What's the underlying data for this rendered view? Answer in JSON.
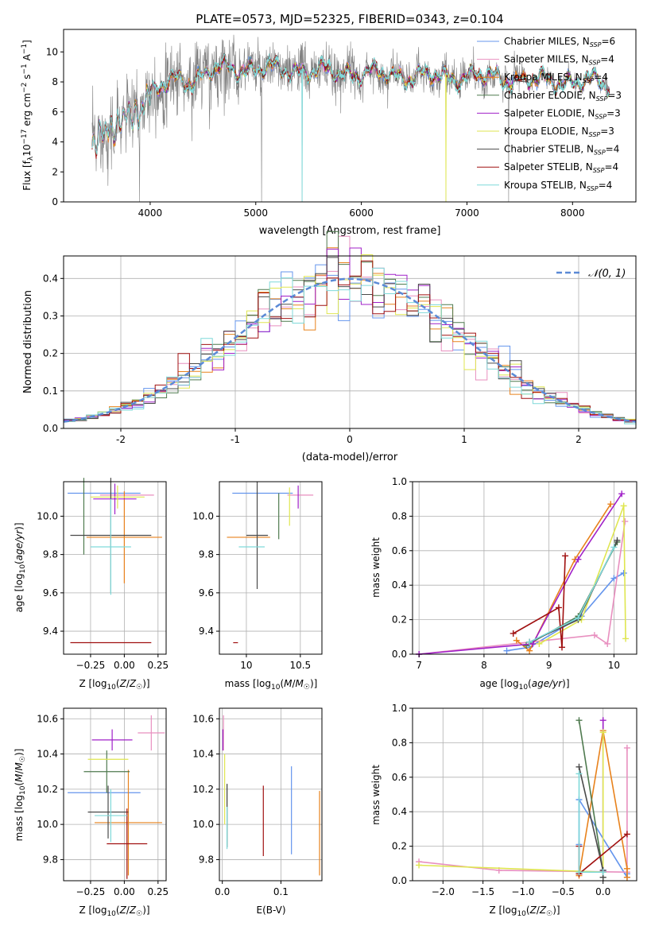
{
  "colors": {
    "palette": [
      "#6495ed",
      "#ee82ee",
      "#ff8c00",
      "#2e8b57",
      "#9400d3",
      "#cdda22",
      "#3a3a3a",
      "#b22222",
      "#72dcd8"
    ],
    "chabrier_miles": "#6495ed",
    "salpeter_miles": "#e88fbf",
    "kroupa_miles": "#e8821c",
    "chabrier_elodie": "#4f7a4f",
    "salpeter_elodie": "#a020c8",
    "kroupa_elodie": "#dfe650",
    "chabrier_stelib": "#4a4a4a",
    "salpeter_stelib": "#a01010",
    "kroupa_stelib": "#7fd9d9",
    "spectrum_gray": "#808080",
    "normal_curve": "#5b8ad6"
  },
  "chart_data": [
    {
      "id": "spectrum",
      "type": "line",
      "title": "PLATE=0573, MJD=52325, FIBERID=0343, z=0.104",
      "xlabel": "wavelength [Angstrom, rest frame]",
      "ylabel": "Flux [f_λ10^-17 erg cm^-2 s^-1 A^-1]",
      "xlim": [
        3180,
        8600
      ],
      "ylim": [
        0,
        11.5
      ],
      "xticks": [
        4000,
        5000,
        6000,
        7000,
        8000
      ],
      "yticks": [
        0,
        2,
        4,
        6,
        8,
        10
      ],
      "grid": false,
      "legend": "top-right",
      "legend_entries": [
        "Chabrier MILES, N_SSP=6",
        "Salpeter MILES, N_SSP=4",
        "Kroupa MILES, N_SSP=4",
        "Chabrier ELODIE, N_SSP=3",
        "Salpeter ELODIE, N_SSP=3",
        "Kroupa ELODIE, N_SSP=3",
        "Chabrier STELIB, N_SSP=4",
        "Salpeter STELIB, N_SSP=4",
        "Kroupa STELIB, N_SSP=4"
      ],
      "continuum": {
        "x": [
          3450,
          3550,
          3700,
          3800,
          3900,
          4000,
          4100,
          4200,
          4300,
          4400,
          4600,
          4800,
          5000,
          5200,
          5400,
          5600,
          5800,
          6000,
          6200,
          6400,
          6600,
          6800,
          7000,
          7200,
          7400,
          7600,
          7800,
          8000,
          8200,
          8350
        ],
        "y": [
          4.0,
          4.3,
          5.2,
          5.7,
          6.4,
          7.2,
          7.6,
          8.0,
          8.2,
          8.1,
          8.8,
          8.9,
          8.9,
          8.8,
          8.8,
          8.7,
          8.6,
          8.6,
          8.5,
          8.4,
          8.4,
          8.3,
          8.4,
          8.3,
          8.2,
          8.1,
          8.1,
          8.0,
          8.0,
          7.9
        ]
      }
    },
    {
      "id": "residuals",
      "type": "histogram",
      "xlabel": "(data-model)/error",
      "ylabel": "Normed distribution",
      "xlim": [
        -2.5,
        2.5
      ],
      "ylim": [
        0,
        0.46
      ],
      "xticks": [
        -2,
        -1,
        0,
        1,
        2
      ],
      "yticks": [
        0.0,
        0.1,
        0.2,
        0.3,
        0.4
      ],
      "grid": true,
      "legend": "top-right",
      "legend_label": "N(0,1)",
      "bin_width": 0.1,
      "bin_start": -2.5
    },
    {
      "id": "age_vs_Z",
      "type": "scatter",
      "xlabel": "Z [log10(Z/Z☉)]",
      "ylabel": "age [log10(age/yr)]",
      "xlim": [
        -0.45,
        0.31
      ],
      "ylim": [
        9.28,
        10.18
      ],
      "xticks": [
        -0.25,
        0.0,
        0.25
      ],
      "xticklabels": [
        "−0.25",
        "0.00",
        "0.25"
      ],
      "yticks": [
        9.4,
        9.6,
        9.8,
        10.0
      ],
      "grid": true,
      "points": [
        {
          "x": -0.15,
          "xerr": 0.27,
          "y": 10.12,
          "yerr": 0.0
        },
        {
          "x": 0.02,
          "xerr": 0.2,
          "y": 10.11,
          "yerr": 0.0
        },
        {
          "x": 0.0,
          "xerr": 0.28,
          "y": 9.89,
          "yerr": 0.24
        },
        {
          "x": -0.3,
          "xerr": 0.0,
          "y": 10.0,
          "yerr": 0.2
        },
        {
          "x": -0.07,
          "xerr": 0.16,
          "y": 10.09,
          "yerr": 0.08
        },
        {
          "x": -0.05,
          "xerr": 0.2,
          "y": 10.1,
          "yerr": 0.06
        },
        {
          "x": -0.1,
          "xerr": 0.3,
          "y": 9.9,
          "yerr": 0.3
        },
        {
          "x": -0.1,
          "xerr": 0.3,
          "y": 9.34,
          "yerr": 0.0
        },
        {
          "x": -0.1,
          "xerr": 0.15,
          "y": 9.84,
          "yerr": 0.25
        }
      ]
    },
    {
      "id": "age_vs_mass",
      "type": "scatter",
      "xlabel": "mass [log10(M/M☉)]",
      "ylabel": "",
      "xlim": [
        9.75,
        10.7
      ],
      "ylim": [
        9.28,
        10.18
      ],
      "xticks": [
        10.0,
        10.5
      ],
      "yticks": [
        9.4,
        9.6,
        9.8,
        10.0
      ],
      "grid": true,
      "points": [
        {
          "x": 10.15,
          "xerr": 0.28,
          "y": 10.12,
          "yerr": 0.0
        },
        {
          "x": 10.5,
          "xerr": 0.12,
          "y": 10.11,
          "yerr": 0.0
        },
        {
          "x": 10.02,
          "xerr": 0.2,
          "y": 9.89,
          "yerr": 0.0
        },
        {
          "x": 10.3,
          "xerr": 0.0,
          "y": 10.0,
          "yerr": 0.12
        },
        {
          "x": 10.48,
          "xerr": 0.0,
          "y": 10.1,
          "yerr": 0.06
        },
        {
          "x": 10.4,
          "xerr": 0.0,
          "y": 10.05,
          "yerr": 0.1
        },
        {
          "x": 10.1,
          "xerr": 0.1,
          "y": 9.9,
          "yerr": 0.28
        },
        {
          "x": 9.9,
          "xerr": 0.0,
          "y": 9.34,
          "yerr": 0.0
        },
        {
          "x": 10.05,
          "xerr": 0.12,
          "y": 9.84,
          "yerr": 0.0
        }
      ]
    },
    {
      "id": "mw_vs_age",
      "type": "line",
      "xlabel": "age [log10(age/yr)]",
      "ylabel": "mass weight",
      "xlim": [
        6.9,
        10.35
      ],
      "ylim": [
        0,
        1.0
      ],
      "xticks": [
        7,
        8,
        9,
        10
      ],
      "yticks": [
        0.0,
        0.2,
        0.4,
        0.6,
        0.8,
        1.0
      ],
      "grid": true,
      "series": [
        {
          "x": [
            8.35,
            8.7,
            9.5,
            10.0,
            10.15
          ],
          "y": [
            0.02,
            0.04,
            0.22,
            0.44,
            0.47
          ]
        },
        {
          "x": [
            7.0,
            8.7,
            9.7,
            9.9,
            10.17
          ],
          "y": [
            0.0,
            0.07,
            0.11,
            0.06,
            0.77
          ]
        },
        {
          "x": [
            8.5,
            8.7,
            9.4,
            9.95
          ],
          "y": [
            0.08,
            0.02,
            0.55,
            0.87
          ]
        },
        {
          "x": [
            8.65,
            9.45,
            10.05
          ],
          "y": [
            0.05,
            0.22,
            0.65
          ]
        },
        {
          "x": [
            7.0,
            8.75,
            9.45,
            10.12
          ],
          "y": [
            0.0,
            0.06,
            0.55,
            0.93
          ]
        },
        {
          "x": [
            8.85,
            9.5,
            10.15,
            10.18
          ],
          "y": [
            0.06,
            0.2,
            0.86,
            0.09
          ]
        },
        {
          "x": [
            8.7,
            9.45,
            10.05
          ],
          "y": [
            0.07,
            0.2,
            0.66
          ]
        },
        {
          "x": [
            8.45,
            9.15,
            9.2,
            9.25
          ],
          "y": [
            0.12,
            0.27,
            0.04,
            0.57
          ]
        },
        {
          "x": [
            8.7,
            9.45,
            10.0
          ],
          "y": [
            0.07,
            0.21,
            0.62
          ]
        }
      ]
    },
    {
      "id": "mass_vs_Z",
      "type": "scatter",
      "xlabel": "Z [log10(Z/Z☉)]",
      "ylabel": "mass [log10(M/M☉)]",
      "xlim": [
        -0.45,
        0.31
      ],
      "ylim": [
        9.68,
        10.66
      ],
      "xticks": [
        -0.25,
        0.0,
        0.25
      ],
      "xticklabels": [
        "−0.25",
        "0.00",
        "0.25"
      ],
      "yticks": [
        9.8,
        10.0,
        10.2,
        10.4,
        10.6
      ],
      "grid": true,
      "points": [
        {
          "x": -0.15,
          "xerr": 0.27,
          "y": 10.18,
          "yerr": 0.0
        },
        {
          "x": 0.2,
          "xerr": 0.1,
          "y": 10.52,
          "yerr": 0.1
        },
        {
          "x": 0.03,
          "xerr": 0.25,
          "y": 10.01,
          "yerr": 0.3
        },
        {
          "x": -0.13,
          "xerr": 0.17,
          "y": 10.3,
          "yerr": 0.12
        },
        {
          "x": -0.09,
          "xerr": 0.15,
          "y": 10.48,
          "yerr": 0.06
        },
        {
          "x": -0.12,
          "xerr": 0.15,
          "y": 10.37,
          "yerr": 0.0
        },
        {
          "x": -0.12,
          "xerr": 0.15,
          "y": 10.07,
          "yerr": 0.15
        },
        {
          "x": 0.02,
          "xerr": 0.15,
          "y": 9.89,
          "yerr": 0.2
        },
        {
          "x": -0.1,
          "xerr": 0.12,
          "y": 10.05,
          "yerr": 0.15
        }
      ]
    },
    {
      "id": "mass_vs_ebv",
      "type": "scatter",
      "xlabel": "E(B-V)",
      "ylabel": "",
      "xlim": [
        -0.005,
        0.17
      ],
      "ylim": [
        9.68,
        10.66
      ],
      "xticks": [
        0.0,
        0.1
      ],
      "xticklabels": [
        "0.0",
        "0.1"
      ],
      "yticks": [
        9.8,
        10.0,
        10.2,
        10.4,
        10.6
      ],
      "grid": true,
      "points": [
        {
          "x": 0.118,
          "y": 10.08,
          "yerr": 0.25
        },
        {
          "x": 0.002,
          "y": 10.52,
          "yerr": 0.1
        },
        {
          "x": 0.166,
          "y": 9.95,
          "yerr": 0.24
        },
        {
          "x": 0.008,
          "y": 10.05,
          "yerr": 0.18
        },
        {
          "x": 0.001,
          "y": 10.48,
          "yerr": 0.06
        },
        {
          "x": 0.004,
          "y": 10.2,
          "yerr": 0.2
        },
        {
          "x": 0.008,
          "y": 10.05,
          "yerr": 0.18
        },
        {
          "x": 0.07,
          "y": 10.02,
          "yerr": 0.2
        },
        {
          "x": 0.008,
          "y": 9.98,
          "yerr": 0.12
        }
      ]
    },
    {
      "id": "mw_vs_Z",
      "type": "line",
      "xlabel": "Z [log10(Z/Z☉)]",
      "ylabel": "mass weight",
      "xlim": [
        -2.38,
        0.42
      ],
      "ylim": [
        0,
        1.0
      ],
      "xticks": [
        -2.0,
        -1.5,
        -1.0,
        -0.5,
        0.0
      ],
      "xticklabels": [
        "−2.0",
        "−1.5",
        "−1.0",
        "−0.5",
        "0.0"
      ],
      "yticks": [
        0.0,
        0.2,
        0.4,
        0.6,
        0.8,
        1.0
      ],
      "grid": true,
      "series": [
        {
          "x": [
            -0.3,
            -0.3,
            0.3,
            0.3
          ],
          "y": [
            0.21,
            0.47,
            0.02,
            0.04
          ]
        },
        {
          "x": [
            -2.3,
            -1.3,
            0.3,
            0.3
          ],
          "y": [
            0.11,
            0.06,
            0.05,
            0.77
          ]
        },
        {
          "x": [
            -0.3,
            0.0,
            0.3,
            0.3
          ],
          "y": [
            0.03,
            0.87,
            0.07,
            0.02
          ]
        },
        {
          "x": [
            -0.3,
            0.0,
            0.0
          ],
          "y": [
            0.93,
            0.05,
            0.02
          ]
        },
        {
          "x": [
            0.0,
            0.0
          ],
          "y": [
            0.93,
            0.06
          ]
        },
        {
          "x": [
            -2.3,
            0.0,
            0.0
          ],
          "y": [
            0.09,
            0.05,
            0.86
          ]
        },
        {
          "x": [
            -0.3,
            0.0,
            0.0
          ],
          "y": [
            0.66,
            0.06,
            0.02
          ]
        },
        {
          "x": [
            -0.3,
            -0.3,
            0.3
          ],
          "y": [
            0.2,
            0.04,
            0.27
          ]
        },
        {
          "x": [
            -0.3,
            -0.3,
            0.0
          ],
          "y": [
            0.62,
            0.05,
            0.05
          ]
        }
      ]
    }
  ]
}
